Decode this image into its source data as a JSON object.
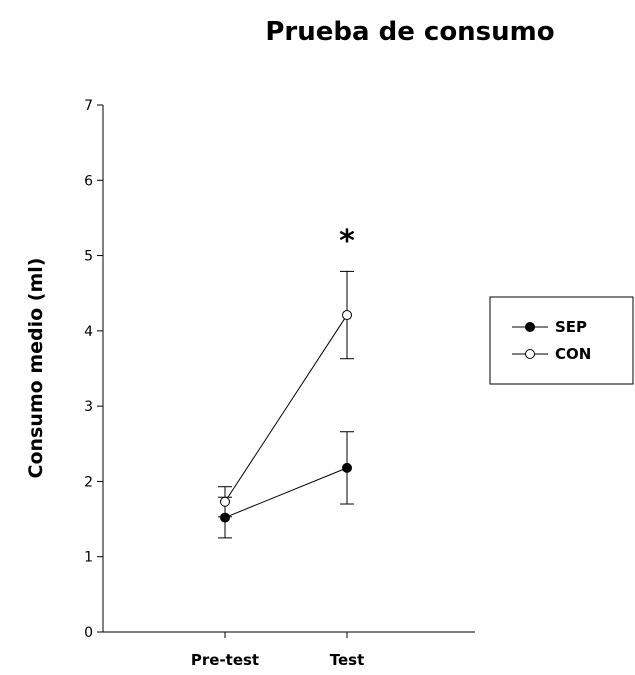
{
  "chart_data": {
    "type": "line",
    "title": "Prueba de consumo",
    "xlabel": "",
    "ylabel": "Consumo medio (ml)",
    "categories": [
      "Pre-test",
      "Test"
    ],
    "ylim": [
      0,
      7
    ],
    "yticks": [
      0,
      1,
      2,
      3,
      4,
      5,
      6,
      7
    ],
    "grid": false,
    "legend_position": "right",
    "series": [
      {
        "name": "SEP",
        "values": [
          1.52,
          2.18
        ],
        "errors": [
          0.27,
          0.48
        ],
        "marker": "filled-circle",
        "color": "#000000"
      },
      {
        "name": "CON",
        "values": [
          1.73,
          4.21
        ],
        "errors": [
          0.2,
          0.58
        ],
        "marker": "open-circle",
        "color": "#000000"
      }
    ],
    "annotations": [
      {
        "text": "*",
        "category": "Test",
        "y": 5.3
      }
    ]
  }
}
